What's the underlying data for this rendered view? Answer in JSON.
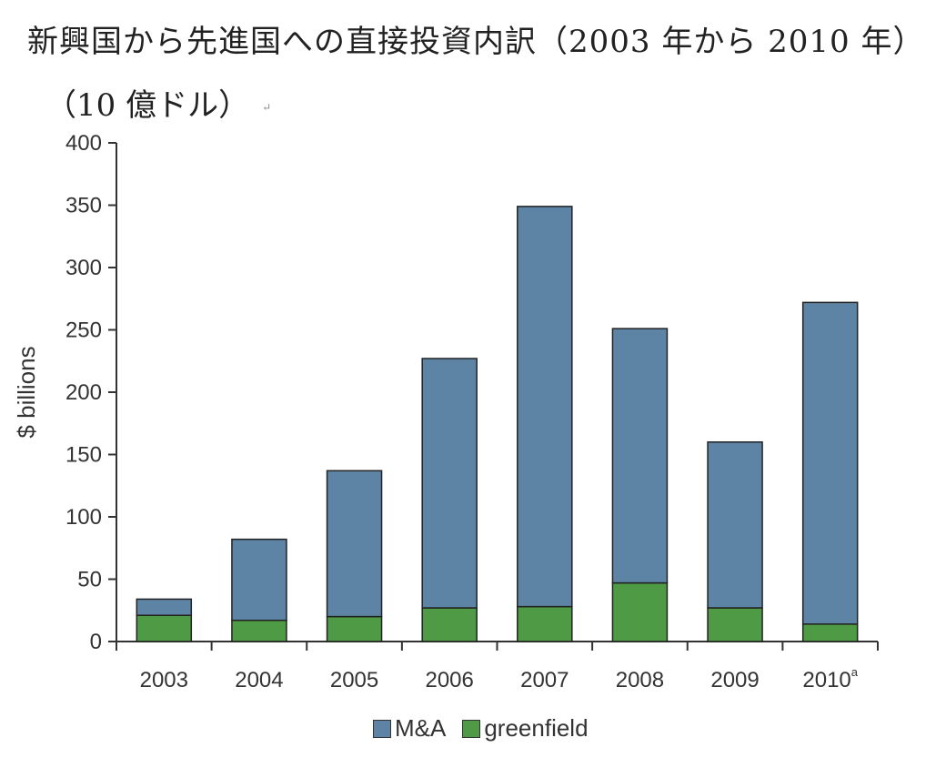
{
  "header": {
    "title": "新興国から先進国への直接投資内訳（2003 年から 2010 年）",
    "subtitle": "（10 億ドル）",
    "para_mark": "↵"
  },
  "chart_data": {
    "type": "bar",
    "stacked": true,
    "categories": [
      "2003",
      "2004",
      "2005",
      "2006",
      "2007",
      "2008",
      "2009",
      "2010"
    ],
    "category_superscripts": [
      "",
      "",
      "",
      "",
      "",
      "",
      "",
      "a"
    ],
    "series": [
      {
        "name": "greenfield",
        "values": [
          21,
          17,
          20,
          27,
          28,
          47,
          27,
          14
        ],
        "color": "#4f9a45"
      },
      {
        "name": "M&A",
        "values": [
          13,
          65,
          117,
          200,
          321,
          204,
          133,
          258
        ],
        "color": "#5d84a5"
      }
    ],
    "totals": [
      34,
      82,
      137,
      227,
      349,
      251,
      160,
      272
    ],
    "ylabel": "$ billions",
    "xlabel": "",
    "ylim": [
      0,
      400
    ],
    "yticks": [
      "0",
      "50",
      "100",
      "150",
      "200",
      "250",
      "300",
      "350",
      "400"
    ],
    "grid": false,
    "legend_position": "bottom-center"
  },
  "legend": {
    "items": [
      {
        "label": "M&A",
        "color": "#5d84a5"
      },
      {
        "label": "greenfield",
        "color": "#4f9a45"
      }
    ]
  }
}
